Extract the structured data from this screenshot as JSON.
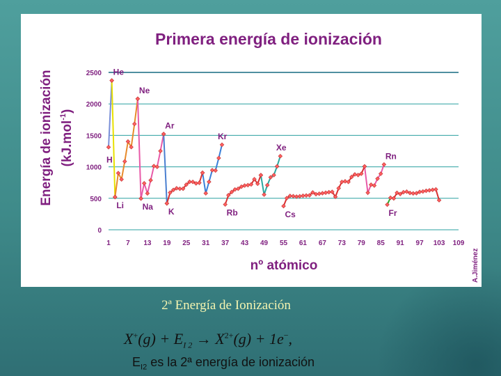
{
  "chart_data": {
    "type": "line",
    "title": "Primera energía de ionización",
    "ylabel_line1": "Energía de ionización",
    "ylabel_line2": "(kJ.mol",
    "ylabel_sup": "-1",
    "ylabel_close": ")",
    "xlabel": "nº atómico",
    "credit": "A.Jiménez",
    "ylim": [
      0,
      2500
    ],
    "xlim": [
      1,
      109
    ],
    "yticks": [
      0,
      500,
      1000,
      1500,
      2000,
      2500
    ],
    "xticks": [
      1,
      7,
      13,
      19,
      25,
      31,
      37,
      43,
      49,
      55,
      61,
      67,
      73,
      79,
      85,
      91,
      97,
      103,
      109
    ],
    "grid": true,
    "series": [
      {
        "color": "#7a8fd8",
        "x": [
          1,
          2
        ],
        "y": [
          1312,
          2372
        ]
      },
      {
        "color": "#e8e000",
        "x": [
          2,
          3
        ],
        "y": [
          2372,
          520
        ]
      },
      {
        "color": "#e88a2a",
        "x": [
          3,
          4,
          5,
          6,
          7,
          8,
          9,
          10
        ],
        "y": [
          520,
          900,
          801,
          1086,
          1402,
          1314,
          1681,
          2081
        ]
      },
      {
        "color": "#e85aa8",
        "x": [
          10,
          11
        ],
        "y": [
          2081,
          496
        ]
      },
      {
        "color": "#e85aa8",
        "x": [
          11,
          12,
          13,
          14,
          15,
          16,
          17,
          18
        ],
        "y": [
          496,
          738,
          578,
          787,
          1012,
          1000,
          1251,
          1521
        ]
      },
      {
        "color": "#4a7fd0",
        "x": [
          18,
          19
        ],
        "y": [
          1521,
          419
        ]
      },
      {
        "color": "#d83030",
        "x": [
          19,
          20,
          21,
          22,
          23,
          24,
          25,
          26,
          27,
          28,
          29,
          30
        ],
        "y": [
          419,
          590,
          633,
          659,
          651,
          653,
          717,
          762,
          760,
          737,
          746,
          906
        ]
      },
      {
        "color": "#3a7fd8",
        "x": [
          30,
          31,
          32,
          33,
          34,
          35,
          36
        ],
        "y": [
          906,
          579,
          762,
          947,
          941,
          1140,
          1351
        ]
      },
      {
        "color": "#d83030",
        "x": [
          37,
          38,
          39,
          40,
          41,
          42,
          43,
          44,
          45,
          46,
          47,
          48
        ],
        "y": [
          403,
          550,
          600,
          640,
          652,
          684,
          702,
          710,
          720,
          804,
          731,
          868
        ]
      },
      {
        "color": "#2aa8a0",
        "x": [
          48,
          49,
          50,
          51,
          52,
          53,
          54
        ],
        "y": [
          868,
          558,
          709,
          834,
          869,
          1008,
          1170
        ]
      },
      {
        "color": "#d83030",
        "x": [
          55,
          56,
          57,
          58,
          59,
          60,
          61,
          62,
          63,
          64,
          65,
          66,
          67,
          68,
          69,
          70,
          71,
          72,
          73,
          74,
          75,
          76,
          77,
          78,
          79,
          80
        ],
        "y": [
          376,
          503,
          538,
          534,
          527,
          533,
          540,
          545,
          547,
          593,
          566,
          573,
          581,
          589,
          597,
          603,
          524,
          659,
          761,
          770,
          760,
          840,
          880,
          870,
          890,
          1007
        ]
      },
      {
        "color": "#e85aa8",
        "x": [
          80,
          81,
          82,
          83,
          84,
          85,
          86
        ],
        "y": [
          1007,
          589,
          716,
          703,
          812,
          890,
          1037
        ]
      },
      {
        "color": "#2aa82a",
        "x": [
          87,
          88,
          89
        ],
        "y": [
          400,
          509,
          499
        ]
      },
      {
        "color": "#d83030",
        "x": [
          89,
          90,
          91,
          92,
          93,
          94,
          95,
          96,
          97,
          98,
          99,
          100,
          101,
          102,
          103
        ],
        "y": [
          499,
          587,
          568,
          598,
          605,
          585,
          578,
          581,
          601,
          608,
          619,
          627,
          635,
          642,
          470
        ]
      }
    ],
    "annotations": [
      {
        "label": "He",
        "x": 2,
        "y": 2372
      },
      {
        "label": "Ne",
        "x": 10,
        "y": 2081
      },
      {
        "label": "Ar",
        "x": 18,
        "y": 1521
      },
      {
        "label": "Kr",
        "x": 36,
        "y": 1351
      },
      {
        "label": "Xe",
        "x": 54,
        "y": 1170
      },
      {
        "label": "Rn",
        "x": 86,
        "y": 1037
      },
      {
        "label": "H",
        "x": 1,
        "y": 1312
      },
      {
        "label": "Li",
        "x": 3,
        "y": 520
      },
      {
        "label": "Na",
        "x": 11,
        "y": 496
      },
      {
        "label": "K",
        "x": 19,
        "y": 419
      },
      {
        "label": "Rb",
        "x": 37,
        "y": 403
      },
      {
        "label": "Cs",
        "x": 55,
        "y": 376
      },
      {
        "label": "Fr",
        "x": 87,
        "y": 400
      }
    ]
  },
  "slide": {
    "caption": "2ª Energía de Ionización",
    "formula": {
      "lhs_x": "X",
      "lhs_charge": "+",
      "lhs_state": "(g)",
      "plus1": "+",
      "energy_E": "E",
      "energy_sub": "I 2",
      "arrow": "→",
      "rhs_x": "X",
      "rhs_charge": "2+",
      "rhs_state": "(g)",
      "plus2": "+",
      "electron": "1e",
      "electron_charge": "−",
      "comma": ","
    },
    "note": {
      "E": "E",
      "sub": "I2",
      "text": " es la 2ª energía de ionización"
    }
  }
}
